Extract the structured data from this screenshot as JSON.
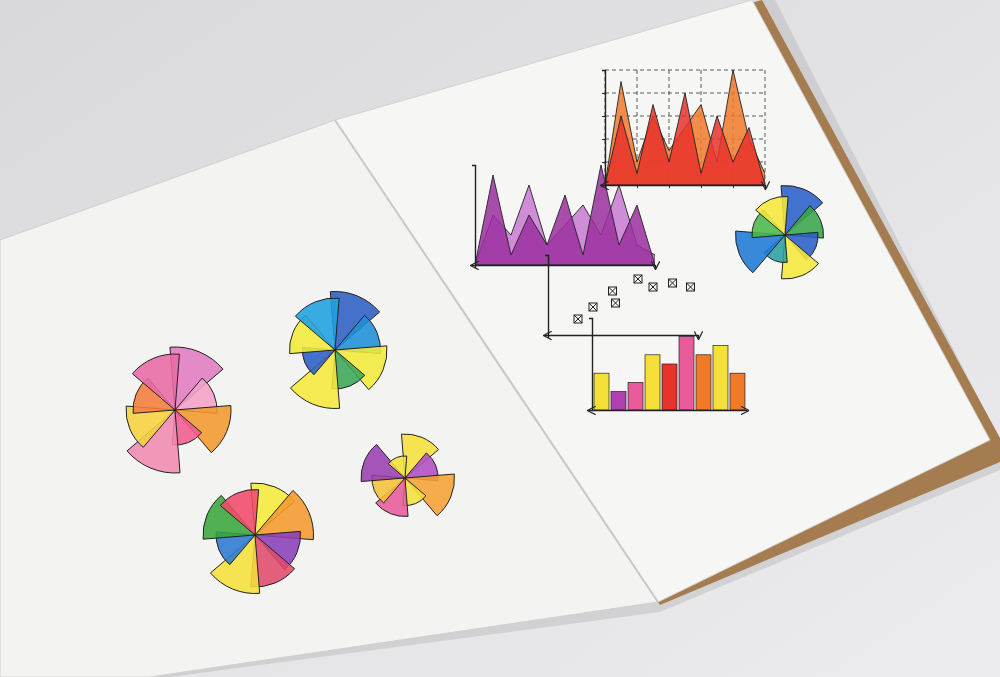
{
  "chart_data": [
    {
      "type": "rose",
      "values": [
        9,
        6,
        8,
        5,
        9,
        7,
        6,
        8
      ],
      "colors": [
        "#e07bc0",
        "#f5a0c8",
        "#f39a2c",
        "#ef5a8f",
        "#f08ab0",
        "#f7d23e",
        "#f47d3a",
        "#e86aa5"
      ],
      "ylim": [
        0,
        10
      ],
      "tick_labels": false
    },
    {
      "type": "rose",
      "values": [
        9,
        7,
        8,
        6,
        9,
        5,
        7,
        8
      ],
      "colors": [
        "#2c5fc4",
        "#1f8fd6",
        "#f2ea3a",
        "#3aa655",
        "#f5e83a",
        "#2c5fc4",
        "#f2ea3a",
        "#1fa0e0"
      ],
      "ylim": [
        0,
        10
      ],
      "tick_labels": false
    },
    {
      "type": "rose",
      "values": [
        8,
        6,
        9,
        5,
        7,
        6,
        8,
        4
      ],
      "colors": [
        "#f5e03a",
        "#b04fc4",
        "#f7a233",
        "#f5e03a",
        "#e85a9a",
        "#f5c13a",
        "#9a3fb0",
        "#f5e03a"
      ],
      "ylim": [
        0,
        10
      ],
      "tick_labels": false
    },
    {
      "type": "rose",
      "values": [
        8,
        9,
        7,
        8,
        9,
        6,
        8,
        7
      ],
      "colors": [
        "#f5ea3a",
        "#f59a2c",
        "#8a3fb8",
        "#e04a6a",
        "#f5e03a",
        "#2a7ad0",
        "#3aa63a",
        "#f04a6a"
      ],
      "ylim": [
        0,
        10
      ],
      "tick_labels": false
    },
    {
      "type": "area",
      "x": [
        0,
        1,
        2,
        3,
        4,
        5,
        6,
        7,
        8,
        9,
        10
      ],
      "series": [
        {
          "color": "#c77ad0",
          "values": [
            0,
            5,
            3,
            8,
            2,
            4,
            6,
            3,
            8,
            2,
            1
          ]
        },
        {
          "color": "#9b2fa0",
          "values": [
            0,
            9,
            1,
            5,
            2,
            7,
            1,
            10,
            2,
            6,
            0
          ]
        }
      ],
      "xlim": [
        0,
        10
      ],
      "ylim": [
        0,
        10
      ],
      "tick_labels": false
    },
    {
      "type": "area",
      "x": [
        0,
        1,
        2,
        3,
        4,
        5,
        6,
        7,
        8,
        9,
        10
      ],
      "series": [
        {
          "color": "#f07a2a",
          "values": [
            0,
            9,
            2,
            6,
            3,
            5,
            7,
            2,
            10,
            4,
            1
          ]
        },
        {
          "color": "#e8322c",
          "values": [
            0,
            6,
            1,
            7,
            2,
            8,
            1,
            6,
            2,
            5,
            0
          ]
        }
      ],
      "xlim": [
        0,
        10
      ],
      "ylim": [
        0,
        10
      ],
      "xticks": [
        0,
        2,
        4,
        6,
        8,
        10
      ],
      "yticks": [
        0,
        2,
        4,
        6,
        8,
        10
      ],
      "grid": true,
      "tick_labels": false
    },
    {
      "type": "rose",
      "values": [
        9,
        7,
        6,
        8,
        5,
        9,
        6,
        7
      ],
      "colors": [
        "#2a5fc8",
        "#3aa64a",
        "#2a5fc8",
        "#f5e83a",
        "#2aa0a0",
        "#1f7ad6",
        "#4ab84a",
        "#f5e83a"
      ],
      "ylim": [
        0,
        10
      ],
      "tick_labels": false
    },
    {
      "type": "scatter",
      "x": [
        2,
        3,
        4.5,
        4.3,
        6,
        7,
        8.3,
        9.5
      ],
      "values": [
        2,
        3.5,
        4,
        5.5,
        7,
        6,
        6.5,
        6
      ],
      "xlim": [
        0,
        10
      ],
      "ylim": [
        0,
        10
      ],
      "marker": "boxed-x",
      "tick_labels": false
    },
    {
      "type": "bar",
      "categories": [
        null,
        null,
        null,
        null,
        null,
        null,
        null,
        null,
        null
      ],
      "values": [
        4,
        2,
        3,
        6,
        5,
        8,
        6,
        7,
        4
      ],
      "colors": [
        "#f5e03a",
        "#b03fb0",
        "#e85a9a",
        "#f5e03a",
        "#e8322c",
        "#e85a9a",
        "#f07a2a",
        "#f5e03a",
        "#f07a2a"
      ],
      "ylim": [
        0,
        10
      ],
      "tick_labels": false
    }
  ]
}
